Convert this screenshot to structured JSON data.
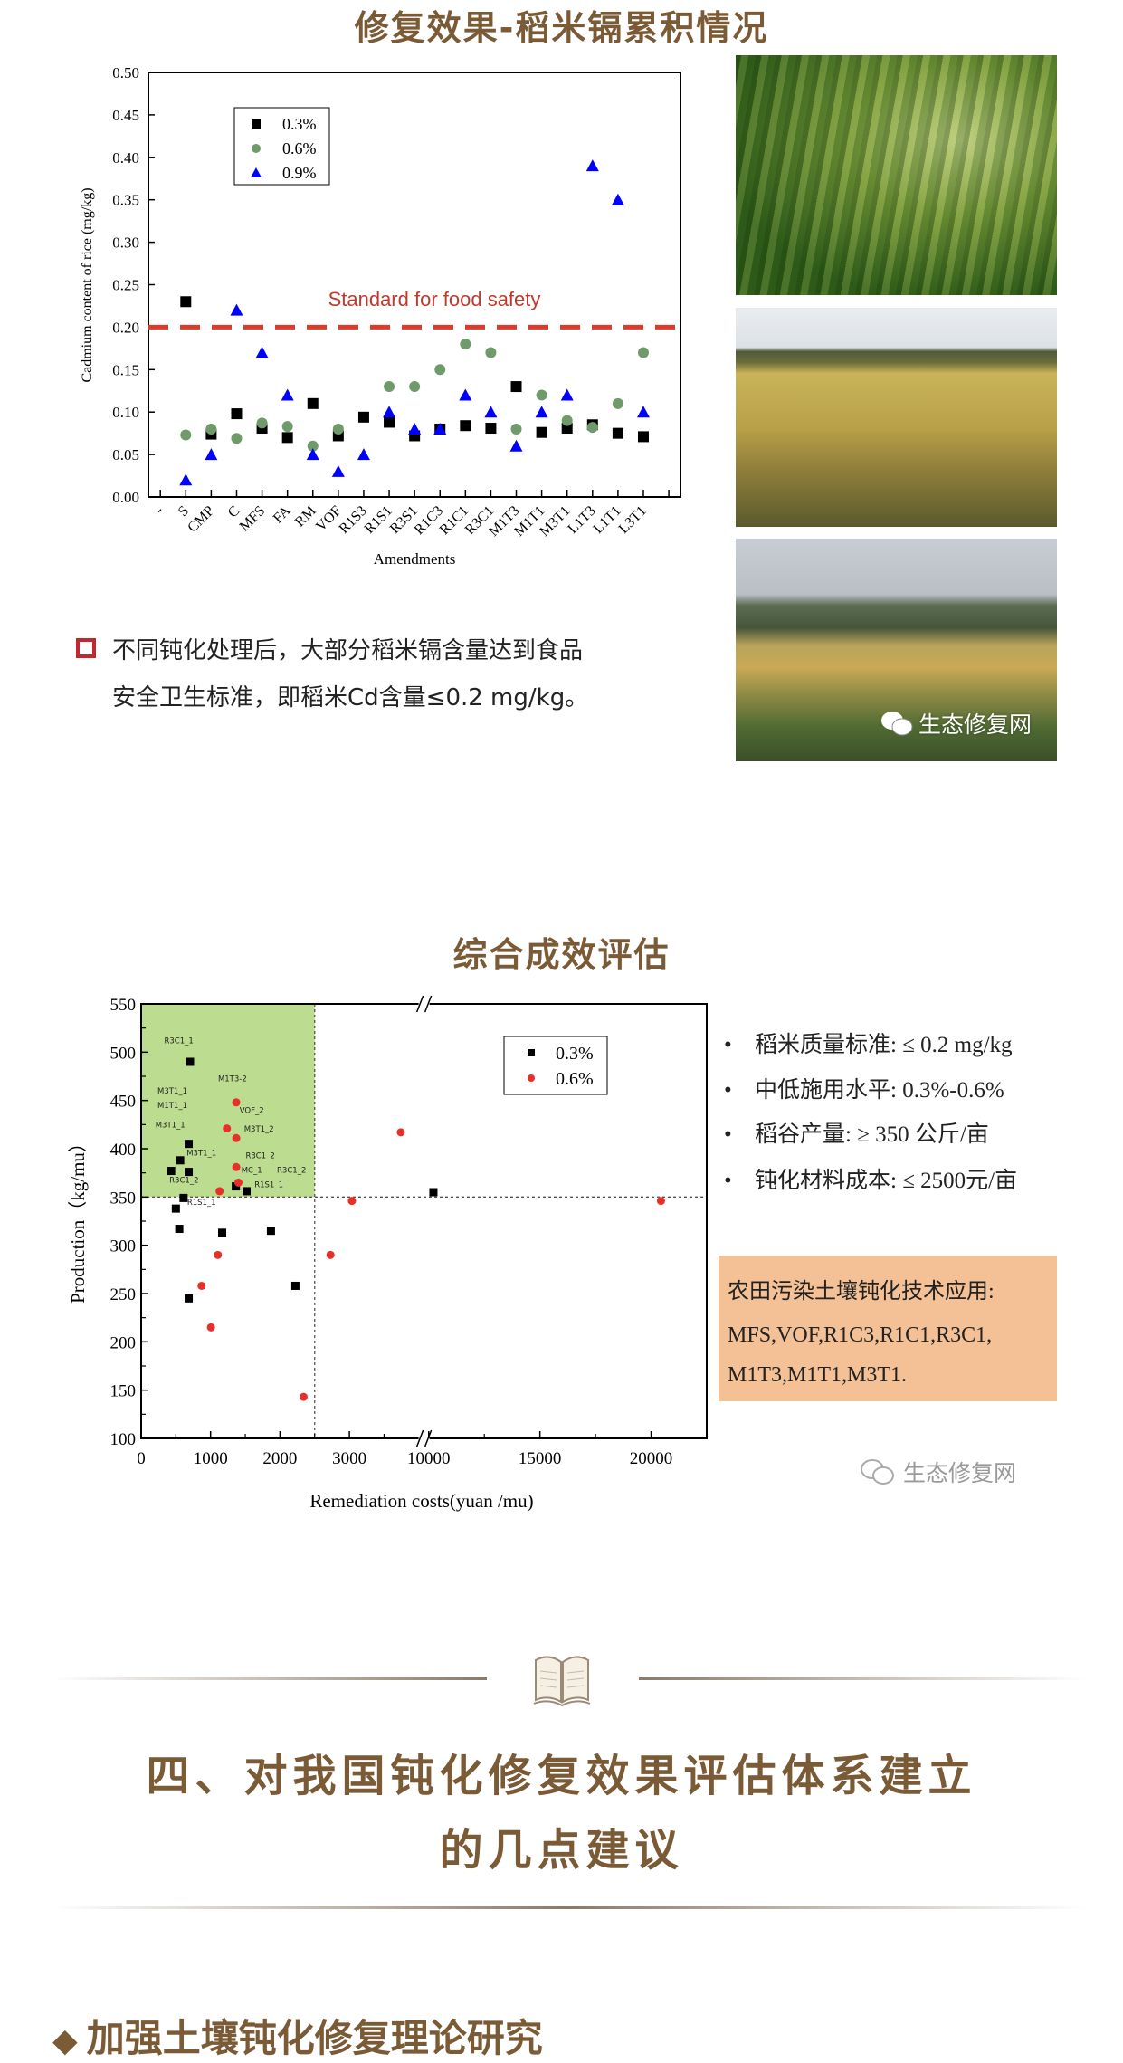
{
  "section1": {
    "title": "修复效果-稻米镉累积情况",
    "note_line1": "不同钝化处理后，大部分稻米镉含量达到食品",
    "note_line2": "安全卫生标准，即稻米Cd含量≤0.2 mg/kg。",
    "photo_watermark": "生态修复网"
  },
  "section2": {
    "title": "综合成效评估",
    "criteria": [
      "稻米质量标准: ≤ 0.2 mg/kg",
      "中低施用水平: 0.3%-0.6%",
      "稻谷产量: ≥ 350 公斤/亩",
      "钝化材料成本: ≤ 2500元/亩"
    ],
    "box_line1": "农田污染土壤钝化技术应用:",
    "box_line2": "MFS,VOF,R1C3,R1C1,R3C1,",
    "box_line3": "M1T3,M1T1,M3T1.",
    "watermark": "生态修复网",
    "box_color": "#f3c195"
  },
  "section3": {
    "heading_line1": "四、对我国钝化修复效果评估体系建立",
    "heading_line2": "的几点建议",
    "subheading": "加强土壤钝化修复理论研究",
    "accent_color": "#7b5a36"
  },
  "chart_data": [
    {
      "type": "scatter",
      "title": "",
      "xlabel": "Amendments",
      "ylabel": "Cadmium content of rice (mg/kg)",
      "ylim": [
        0,
        0.5
      ],
      "yticks": [
        "0.00",
        "0.05",
        "0.10",
        "0.15",
        "0.20",
        "0.25",
        "0.30",
        "0.35",
        "0.40",
        "0.45",
        "0.50"
      ],
      "categories": [
        "-",
        "S",
        "CMP",
        "C",
        "MFS",
        "FA",
        "RM",
        "VOF",
        "R1S3",
        "R1S1",
        "R3S1",
        "R1C3",
        "R1C1",
        "R3C1",
        "M1T3",
        "M1T1",
        "M3T1",
        "L1T3",
        "L1T1",
        "L3T1"
      ],
      "series": [
        {
          "name": "0.3%",
          "marker": "square",
          "color": "#000000",
          "values": [
            null,
            0.23,
            0.074,
            0.098,
            0.081,
            0.07,
            0.11,
            0.072,
            0.094,
            0.088,
            0.072,
            0.08,
            0.084,
            0.081,
            0.13,
            0.076,
            0.081,
            0.085,
            0.075,
            0.071
          ]
        },
        {
          "name": "0.6%",
          "marker": "circle",
          "color": "#6f9a6a",
          "values": [
            null,
            0.073,
            0.08,
            0.069,
            0.087,
            0.083,
            0.06,
            0.08,
            null,
            0.13,
            0.13,
            0.15,
            0.18,
            0.17,
            0.08,
            0.12,
            0.09,
            0.082,
            0.11,
            0.17
          ]
        },
        {
          "name": "0.9%",
          "marker": "triangle",
          "color": "#0000ff",
          "values": [
            null,
            0.02,
            0.05,
            0.22,
            0.17,
            0.12,
            0.05,
            0.03,
            0.05,
            0.1,
            0.08,
            0.08,
            0.12,
            0.1,
            0.06,
            0.1,
            0.12,
            0.39,
            0.35,
            0.1
          ]
        }
      ],
      "reference_line": {
        "value": 0.2,
        "label": "Standard for food safety",
        "color": "#e03a2a"
      },
      "legend": "top-left",
      "grid": false
    },
    {
      "type": "scatter",
      "title": "",
      "xlabel": "Remediation costs(yuan /mu)",
      "ylabel": "Production（kg/mu）",
      "ylim": [
        100,
        550
      ],
      "yticks": [
        "100",
        "150",
        "200",
        "250",
        "300",
        "350",
        "400",
        "450",
        "500",
        "550"
      ],
      "x_axis_broken": true,
      "xlim_segments": [
        [
          0,
          4050
        ],
        [
          9710,
          22500
        ]
      ],
      "xticks": [
        "0",
        "1000",
        "2000",
        "3000",
        "10000",
        "15000",
        "20000"
      ],
      "highlight_region": {
        "x": [
          0,
          2500
        ],
        "y": [
          350,
          550
        ],
        "color": "#bcdc8f"
      },
      "threshold_lines": {
        "x": 2500,
        "y": 350
      },
      "legend": "top-right",
      "grid": false,
      "series": [
        {
          "name": "0.3%",
          "marker": "square",
          "color": "#000000",
          "points": [
            [
              704,
              490
            ],
            [
              685,
              405
            ],
            [
              562,
              388
            ],
            [
              432,
              377
            ],
            [
              685,
              376
            ],
            [
              1364,
              361
            ],
            [
              1519,
              356
            ],
            [
              611,
              349
            ],
            [
              500,
              338
            ],
            [
              549,
              317
            ],
            [
              1167,
              313
            ],
            [
              1870,
              315
            ],
            [
              2222,
              258
            ],
            [
              685,
              245
            ],
            [
              10212,
              355
            ]
          ]
        },
        {
          "name": "0.6%",
          "marker": "circle",
          "color": "#e8302a",
          "points": [
            [
              1370,
              448
            ],
            [
              1235,
              421
            ],
            [
              1370,
              411
            ],
            [
              1370,
              381
            ],
            [
              1401,
              365
            ],
            [
              1130,
              356
            ],
            [
              1105,
              290
            ],
            [
              870,
              258
            ],
            [
              1006,
              215
            ],
            [
              2340,
              143
            ],
            [
              2728,
              290
            ],
            [
              3037,
              346
            ],
            [
              3741,
              417
            ],
            [
              20442,
              346
            ]
          ]
        }
      ],
      "annotations": [
        {
          "text": "R3C1_1",
          "x": 543,
          "y": 509
        },
        {
          "text": "M1T3-2",
          "x": 1315,
          "y": 470
        },
        {
          "text": "M3T1_1",
          "x": 450,
          "y": 457
        },
        {
          "text": "M1T1_1",
          "x": 450,
          "y": 442
        },
        {
          "text": "VOF_2",
          "x": 1593,
          "y": 437
        },
        {
          "text": "M3T1_1",
          "x": 420,
          "y": 422
        },
        {
          "text": "M3T1_2",
          "x": 1698,
          "y": 418
        },
        {
          "text": "M3T1_1",
          "x": 870,
          "y": 393
        },
        {
          "text": "R3C1_2",
          "x": 1716,
          "y": 390
        },
        {
          "text": "MC_1",
          "x": 1593,
          "y": 375
        },
        {
          "text": "R3C1_2",
          "x": 2167,
          "y": 375
        },
        {
          "text": "R3C1_2",
          "x": 617,
          "y": 365
        },
        {
          "text": "R1S1_1",
          "x": 1840,
          "y": 360
        },
        {
          "text": "R1S1_1",
          "x": 870,
          "y": 342
        }
      ]
    }
  ]
}
